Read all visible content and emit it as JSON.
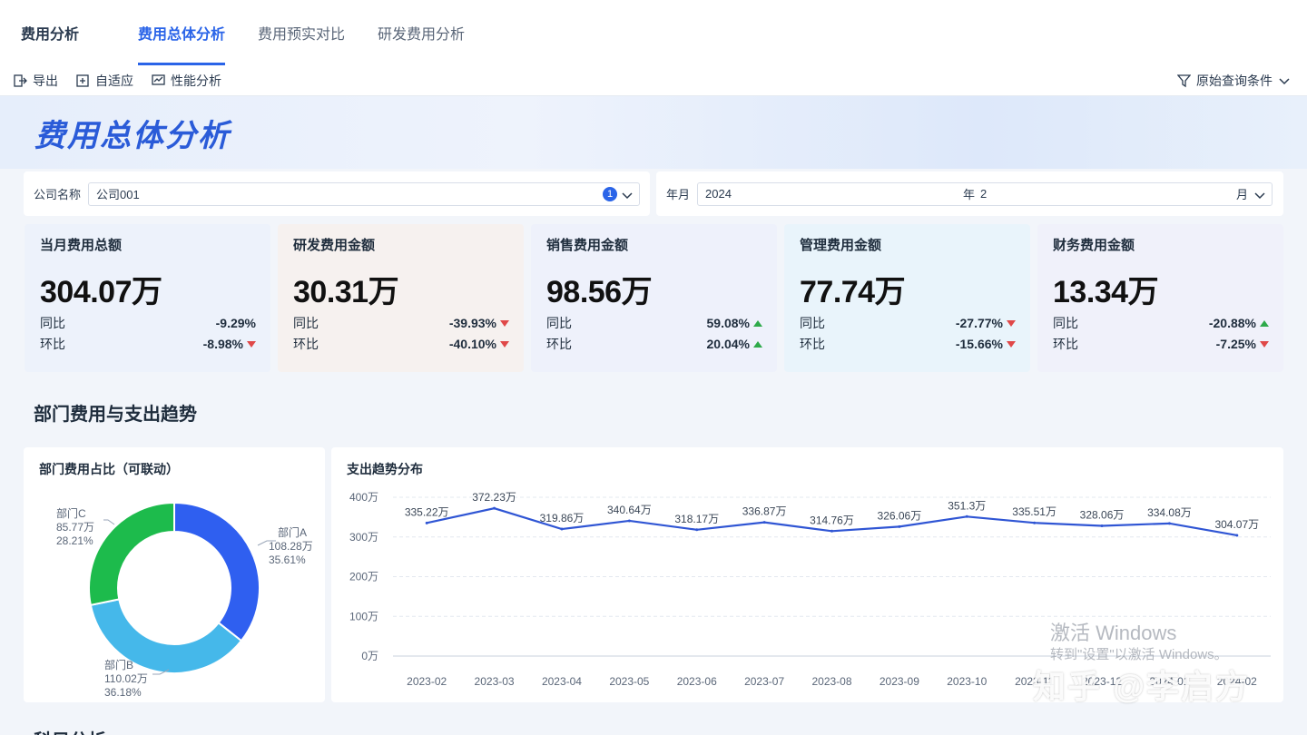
{
  "app_title": "费用分析",
  "tabs": [
    {
      "label": "费用总体分析",
      "active": true
    },
    {
      "label": "费用预实对比",
      "active": false
    },
    {
      "label": "研发费用分析",
      "active": false
    }
  ],
  "toolbar": {
    "export": "导出",
    "adaptive": "自适应",
    "performance": "性能分析",
    "query_conditions": "原始查询条件"
  },
  "banner_title": "费用总体分析",
  "filters": {
    "company_label": "公司名称",
    "company_value": "公司001",
    "company_count": "1",
    "period_label": "年月",
    "year_value": "2024",
    "year_unit": "年",
    "month_value": "2",
    "month_unit": "月"
  },
  "kpis": [
    {
      "name": "当月费用总额",
      "value": "304.07万",
      "yoy_label": "同比",
      "yoy": "-9.29%",
      "yoy_dir": "none",
      "mom_label": "环比",
      "mom": "-8.98%",
      "mom_dir": "down",
      "bg": "#edf2fb"
    },
    {
      "name": "研发费用金额",
      "value": "30.31万",
      "yoy_label": "同比",
      "yoy": "-39.93%",
      "yoy_dir": "down",
      "mom_label": "环比",
      "mom": "-40.10%",
      "mom_dir": "down",
      "bg": "#f6f1ef"
    },
    {
      "name": "销售费用金额",
      "value": "98.56万",
      "yoy_label": "同比",
      "yoy": "59.08%",
      "yoy_dir": "up",
      "mom_label": "环比",
      "mom": "20.04%",
      "mom_dir": "up",
      "bg": "#eef1fb"
    },
    {
      "name": "管理费用金额",
      "value": "77.74万",
      "yoy_label": "同比",
      "yoy": "-27.77%",
      "yoy_dir": "down",
      "mom_label": "环比",
      "mom": "-15.66%",
      "mom_dir": "down",
      "bg": "#e9f4fb"
    },
    {
      "name": "财务费用金额",
      "value": "13.34万",
      "yoy_label": "同比",
      "yoy": "-20.88%",
      "yoy_dir": "up",
      "mom_label": "环比",
      "mom": "-7.25%",
      "mom_dir": "down",
      "bg": "#f0f1fa"
    }
  ],
  "section_title": "部门费用与支出趋势",
  "donut_panel_title": "部门费用占比（可联动）",
  "trend_panel_title": "支出趋势分布",
  "bottom_section_title": "科目分析",
  "colors": {
    "accent": "#2a64e8",
    "up": "#2eaa4a",
    "down": "#e04848",
    "line": "#2f55d4"
  },
  "chart_data": [
    {
      "type": "pie",
      "title": "部门费用占比（可联动）",
      "slices": [
        {
          "name": "部门A",
          "value": 108.28,
          "value_label": "108.28万",
          "percent_label": "35.61%",
          "color": "#2f5ff0"
        },
        {
          "name": "部门B",
          "value": 110.02,
          "value_label": "110.02万",
          "percent_label": "36.18%",
          "color": "#45b8ea"
        },
        {
          "name": "部门C",
          "value": 85.77,
          "value_label": "85.77万",
          "percent_label": "28.21%",
          "color": "#1dbb4c"
        }
      ]
    },
    {
      "type": "line",
      "title": "支出趋势分布",
      "categories": [
        "2023-02",
        "2023-03",
        "2023-04",
        "2023-05",
        "2023-06",
        "2023-07",
        "2023-08",
        "2023-09",
        "2023-10",
        "2023-11",
        "2023-12",
        "2024-01",
        "2024-02"
      ],
      "tick_labels": [
        "2023-02",
        "2023-03",
        "2023-04",
        "2023-05",
        "2023-06",
        "2023-07",
        "2023-08",
        "2023-09",
        "2023-10",
        "2023-11",
        "2023-12",
        "2024-01",
        "2024-02"
      ],
      "values": [
        335.22,
        372.23,
        319.86,
        340.64,
        318.17,
        336.87,
        314.76,
        326.06,
        351.3,
        335.51,
        328.06,
        334.08,
        304.07
      ],
      "value_labels": [
        "335.22万",
        "372.23万",
        "319.86万",
        "340.64万",
        "318.17万",
        "336.87万",
        "314.76万",
        "326.06万",
        "351.3万",
        "335.51万",
        "328.06万",
        "334.08万",
        "304.07万"
      ],
      "y_ticks": [
        {
          "value": 0,
          "label": "0万"
        },
        {
          "value": 100,
          "label": "100万"
        },
        {
          "value": 200,
          "label": "200万"
        },
        {
          "value": 300,
          "label": "300万"
        },
        {
          "value": 400,
          "label": "400万"
        }
      ],
      "ylim": [
        0,
        400
      ],
      "grid": true
    }
  ],
  "watermark": {
    "line1": "激活 Windows",
    "line2": "转到\"设置\"以激活 Windows。",
    "line3": "知乎 @李启方"
  }
}
